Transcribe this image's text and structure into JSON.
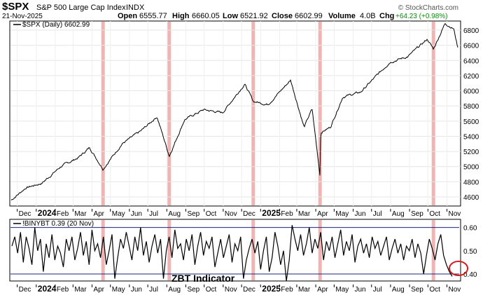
{
  "header": {
    "symbol": "$SPX",
    "name": "S&P 500 Large Cap Index",
    "exchange": "INDX",
    "date": "21-Nov-2025",
    "open_label": "Open",
    "open": "6555.77",
    "high_label": "High",
    "high": "6660.05",
    "low_label": "Low",
    "low": "6521.92",
    "close_label": "Close",
    "close": "6602.99",
    "volume_label": "Volume",
    "volume": "4.0B",
    "chg_label": "Chg",
    "chg": "+64.23 (+0.98%)",
    "watermark": "© StockCharts.com"
  },
  "chart_data": [
    {
      "type": "line",
      "legend": "$SPX (Daily) 6602.99",
      "yticks": [
        4600,
        4800,
        5000,
        5200,
        5400,
        5600,
        5800,
        6000,
        6200,
        6400,
        6600,
        6800
      ],
      "ylim": [
        4480,
        6920
      ],
      "x_ticks": [
        "Dec",
        "2024",
        "Feb",
        "Mar",
        "Apr",
        "May",
        "Jun",
        "Jul",
        "Aug",
        "Sep",
        "Oct",
        "Nov",
        "Dec",
        "2025",
        "Feb",
        "Mar",
        "Apr",
        "May",
        "Jun",
        "Jul",
        "Aug",
        "Sep",
        "Oct",
        "Nov"
      ],
      "x": [
        "2023-11-20",
        "2023-12-15",
        "2024-01-10",
        "2024-02-10",
        "2024-03-10",
        "2024-03-28",
        "2024-04-19",
        "2024-05-20",
        "2024-06-20",
        "2024-07-16",
        "2024-08-05",
        "2024-08-30",
        "2024-09-30",
        "2024-10-31",
        "2024-12-06",
        "2024-12-20",
        "2025-01-13",
        "2025-02-19",
        "2025-03-13",
        "2025-03-26",
        "2025-04-08",
        "2025-04-09",
        "2025-04-25",
        "2025-05-15",
        "2025-06-13",
        "2025-07-31",
        "2025-08-29",
        "2025-09-30",
        "2025-10-10",
        "2025-10-29",
        "2025-11-12",
        "2025-11-20",
        "2025-11-21"
      ],
      "values": [
        4550,
        4720,
        4780,
        5000,
        5120,
        5250,
        4970,
        5300,
        5470,
        5660,
        5140,
        5620,
        5750,
        5710,
        6090,
        5860,
        5820,
        6140,
        5520,
        5760,
        4880,
        5450,
        5520,
        5920,
        5980,
        6380,
        6450,
        6680,
        6550,
        6890,
        6820,
        6520,
        6603
      ],
      "highlight_dates": [
        "2024-04-19",
        "2024-08-05",
        "2024-12-20",
        "2025-04-08",
        "2025-10-10"
      ],
      "highlight_color": "#f2b3b3",
      "line_color": "#000000",
      "grid": true
    },
    {
      "type": "line",
      "legend": "!BINYBT 0.39 (20 Nov)",
      "yticks": [
        0.4,
        0.5,
        0.6
      ],
      "ytick_labels": [
        "0.40",
        "0.50",
        "0.60"
      ],
      "ylim": [
        0.37,
        0.635
      ],
      "reference_lines": [
        0.4,
        0.6
      ],
      "values": [
        0.52,
        0.56,
        0.49,
        0.58,
        0.45,
        0.56,
        0.51,
        0.44,
        0.6,
        0.5,
        0.55,
        0.41,
        0.53,
        0.47,
        0.57,
        0.46,
        0.52,
        0.49,
        0.43,
        0.55,
        0.5,
        0.56,
        0.46,
        0.51,
        0.58,
        0.48,
        0.54,
        0.44,
        0.59,
        0.5,
        0.53,
        0.47,
        0.56,
        0.44,
        0.5,
        0.57,
        0.38,
        0.47,
        0.55,
        0.51,
        0.58,
        0.52,
        0.46,
        0.56,
        0.5,
        0.6,
        0.48,
        0.54,
        0.45,
        0.52,
        0.57,
        0.49,
        0.55,
        0.38,
        0.5,
        0.56,
        0.47,
        0.59,
        0.51,
        0.53,
        0.46,
        0.55,
        0.5,
        0.57,
        0.44,
        0.52,
        0.58,
        0.48,
        0.54,
        0.51,
        0.56,
        0.43,
        0.49,
        0.55,
        0.47,
        0.52,
        0.57,
        0.45,
        0.53,
        0.5,
        0.56,
        0.38,
        0.46,
        0.51,
        0.55,
        0.49,
        0.54,
        0.42,
        0.5,
        0.56,
        0.41,
        0.47,
        0.58,
        0.52,
        0.44,
        0.5,
        0.37,
        0.46,
        0.61,
        0.55,
        0.5,
        0.57,
        0.48,
        0.53,
        0.6,
        0.49,
        0.55,
        0.51,
        0.58,
        0.46,
        0.54,
        0.5,
        0.56,
        0.47,
        0.53,
        0.59,
        0.48,
        0.54,
        0.5,
        0.57,
        0.45,
        0.52,
        0.55,
        0.49,
        0.53,
        0.47,
        0.56,
        0.51,
        0.54,
        0.48,
        0.52,
        0.56,
        0.46,
        0.51,
        0.55,
        0.49,
        0.53,
        0.46,
        0.52,
        0.5,
        0.55,
        0.47,
        0.53,
        0.49,
        0.4,
        0.48,
        0.55,
        0.51,
        0.46,
        0.53,
        0.57,
        0.48,
        0.44,
        0.41,
        0.39
      ],
      "highlight_indices": [
        16,
        36,
        53,
        81,
        96,
        146
      ],
      "line_color": "#000000",
      "ref_line_color": "#1a237e",
      "annotation": "ZBT Indicator",
      "x_ticks": [
        "Dec",
        "2024",
        "Feb",
        "Mar",
        "Apr",
        "May",
        "Jun",
        "Jul",
        "Aug",
        "Sep",
        "Oct",
        "Nov",
        "Dec",
        "2025",
        "Feb",
        "Mar",
        "Apr",
        "May",
        "Jun",
        "Jul",
        "Aug",
        "Sep",
        "Oct",
        "Nov"
      ]
    }
  ]
}
